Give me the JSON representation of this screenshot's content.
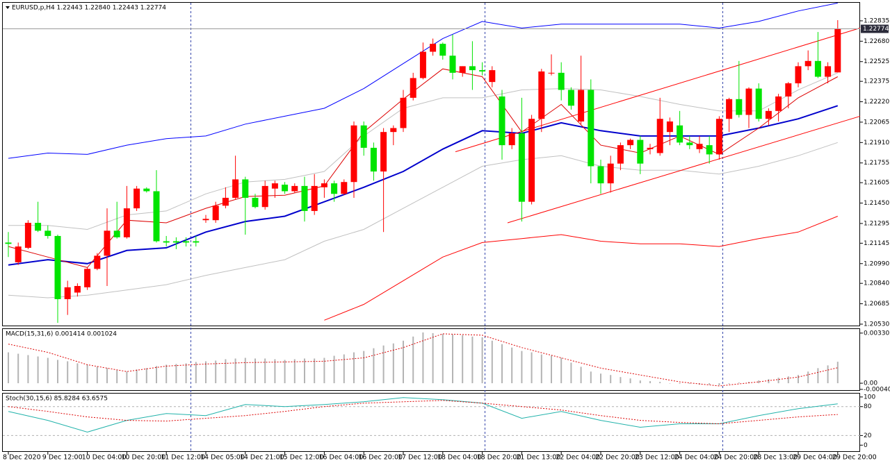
{
  "chart_data": [
    {
      "type": "candlestick",
      "title": "EURUSD,p,H4  1.22443 1.22840 1.22443 1.22774",
      "categories": [
        "8 Dec 2020",
        null,
        null,
        null,
        "9 Dec 12:00",
        null,
        null,
        null,
        "10 Dec 04:00",
        null,
        null,
        null,
        "10 Dec 20:00",
        null,
        null,
        null,
        "11 Dec 12:00",
        null,
        null,
        null,
        "14 Dec 05:00",
        null,
        null,
        null,
        "14 Dec 21:00",
        null,
        null,
        null,
        "15 Dec 12:00",
        null,
        null,
        null,
        "16 Dec 04:00",
        null,
        null,
        null,
        "16 Dec 20:00",
        null,
        null,
        null,
        "17 Dec 12:00",
        null,
        null,
        null,
        "18 Dec 04:00",
        null,
        null,
        null,
        "18 Dec 20:00",
        null,
        null,
        null,
        "21 Dec 13:00",
        null,
        null,
        null,
        "22 Dec 04:00",
        null,
        null,
        null,
        "22 Dec 20:00",
        null,
        null,
        null,
        "23 Dec 12:00",
        null,
        null,
        null,
        "24 Dec 04:00",
        null,
        null,
        null,
        "24 Dec 20:00",
        null,
        null,
        null,
        "28 Dec 13:00",
        null,
        null,
        null,
        "29 Dec 04:00",
        null,
        null,
        null,
        "29 Dec 20:00"
      ],
      "open": [
        1.2115,
        1.21,
        1.2111,
        1.213,
        1.2124,
        1.212,
        1.2072,
        1.2077,
        1.2081,
        1.2095,
        1.2105,
        1.2124,
        1.2119,
        1.2141,
        1.2156,
        1.2154,
        1.2116,
        1.2116,
        1.2116,
        1.2116,
        1.2132,
        1.2132,
        1.2143,
        1.2149,
        1.2163,
        1.2149,
        1.2142,
        1.2156,
        1.2159,
        1.2154,
        1.2158,
        1.2139,
        1.2157,
        1.216,
        1.2152,
        1.2161,
        1.2204,
        1.2187,
        1.2169,
        1.2199,
        1.2202,
        1.2225,
        1.224,
        1.226,
        1.2266,
        1.2257,
        1.2244,
        1.2249,
        1.2246,
        1.2237,
        1.2226,
        1.2189,
        1.2198,
        1.2146,
        1.2209,
        1.2244,
        1.2244,
        1.2231,
        1.2207,
        1.2231,
        1.2173,
        1.216,
        1.2175,
        1.2189,
        1.2193,
        1.2186,
        1.2183,
        1.2199,
        1.2204,
        1.2191,
        1.2186,
        1.2189,
        1.2182,
        1.2209,
        1.2224,
        1.2212,
        1.2232,
        1.2209,
        1.2215,
        1.2226,
        1.2236,
        1.2249,
        1.2253,
        1.2241,
        1.22443
      ],
      "high": [
        1.2123,
        1.2115,
        1.2132,
        1.2146,
        1.2128,
        1.2121,
        1.2086,
        1.2084,
        1.2096,
        1.2107,
        1.2141,
        1.2146,
        1.2158,
        1.2158,
        1.2157,
        1.217,
        1.212,
        1.2119,
        1.2119,
        1.212,
        1.2136,
        1.2146,
        1.2157,
        1.2181,
        1.2165,
        1.2152,
        1.2162,
        1.2162,
        1.2161,
        1.216,
        1.2165,
        1.2167,
        1.2163,
        1.2162,
        1.2163,
        1.2207,
        1.2207,
        1.2191,
        1.2202,
        1.2204,
        1.2231,
        1.2244,
        1.2267,
        1.227,
        1.2267,
        1.2273,
        1.2249,
        1.2268,
        1.2252,
        1.2249,
        1.2231,
        1.2202,
        1.2225,
        1.2212,
        1.2247,
        1.2258,
        1.2252,
        1.2233,
        1.2257,
        1.2239,
        1.2178,
        1.2181,
        1.2191,
        1.2194,
        1.2196,
        1.219,
        1.2225,
        1.221,
        1.2215,
        1.2196,
        1.2196,
        1.2196,
        1.2211,
        1.2225,
        1.2253,
        1.2233,
        1.2236,
        1.2217,
        1.2228,
        1.2237,
        1.2252,
        1.2261,
        1.2275,
        1.2252,
        1.2284
      ],
      "low": [
        1.2104,
        1.2098,
        1.211,
        1.2123,
        1.2118,
        1.2054,
        1.206,
        1.2074,
        1.2079,
        1.2094,
        1.2082,
        1.2118,
        1.2118,
        1.2139,
        1.2153,
        1.2115,
        1.2112,
        1.211,
        1.2112,
        1.2112,
        1.213,
        1.213,
        1.2141,
        1.2148,
        1.2121,
        1.2141,
        1.214,
        1.2149,
        1.2152,
        1.2153,
        1.2131,
        1.2136,
        1.2149,
        1.2146,
        1.2151,
        1.2149,
        1.2181,
        1.2162,
        1.2123,
        1.2189,
        1.2199,
        1.2223,
        1.2239,
        1.2257,
        1.2254,
        1.2239,
        1.2241,
        1.2231,
        1.2242,
        1.2233,
        1.2178,
        1.2186,
        1.2131,
        1.2144,
        1.2199,
        1.2242,
        1.2223,
        1.2216,
        1.2205,
        1.216,
        1.2152,
        1.2153,
        1.217,
        1.2186,
        1.2167,
        1.2182,
        1.2181,
        1.2189,
        1.2189,
        1.2186,
        1.2183,
        1.2175,
        1.2178,
        1.2199,
        1.221,
        1.2202,
        1.2207,
        1.2204,
        1.2207,
        1.2217,
        1.2233,
        1.2246,
        1.224,
        1.2236,
        1.22443
      ],
      "close": [
        1.2114,
        1.2112,
        1.213,
        1.2124,
        1.212,
        1.2072,
        1.2081,
        1.2082,
        1.2095,
        1.2105,
        1.2124,
        1.2119,
        1.2141,
        1.2156,
        1.2154,
        1.2116,
        1.2115,
        1.2115,
        1.2115,
        1.2115,
        1.2133,
        1.2143,
        1.2149,
        1.2163,
        1.2149,
        1.2142,
        1.2158,
        1.216,
        1.2154,
        1.2158,
        1.2139,
        1.2158,
        1.216,
        1.2152,
        1.2161,
        1.2204,
        1.2187,
        1.2169,
        1.2199,
        1.2202,
        1.2225,
        1.224,
        1.226,
        1.2266,
        1.2257,
        1.2244,
        1.2249,
        1.2246,
        1.2245,
        1.2246,
        1.2189,
        1.2198,
        1.2146,
        1.2209,
        1.2245,
        1.2244,
        1.2231,
        1.2219,
        1.2231,
        1.2173,
        1.216,
        1.2175,
        1.2189,
        1.2193,
        1.2175,
        1.2187,
        1.2209,
        1.2207,
        1.2191,
        1.2189,
        1.219,
        1.2182,
        1.2209,
        1.2224,
        1.2212,
        1.2232,
        1.2209,
        1.2215,
        1.2226,
        1.2236,
        1.2249,
        1.2253,
        1.2241,
        1.2249,
        1.22774
      ],
      "up_color": "#ff0000",
      "down_color": "#00e400",
      "ylim": [
        1.20514,
        1.22972
      ],
      "yticks": [
        1.22835,
        {
          "value": 1.2268,
          "label": "1.22680"
        },
        1.22525,
        1.22375,
        {
          "value": 1.2222,
          "label": "1.22220"
        },
        1.22065,
        {
          "value": 1.2191,
          "label": "1.21910"
        },
        1.21755,
        1.21605,
        {
          "value": 1.2145,
          "label": "1.21450"
        },
        1.21295,
        1.21145,
        {
          "value": 1.2099,
          "label": "1.20990"
        },
        {
          "value": 1.2084,
          "label": "1.20840"
        },
        1.20685,
        {
          "value": 1.2053,
          "label": "1.20530"
        }
      ],
      "lines": [
        {
          "color": "#c0c0c0",
          "values": [
            1.2128,
            1.2128,
            1.2125,
            1.2136,
            1.2139,
            1.2152,
            1.2161,
            1.2163,
            1.2169,
            1.2196,
            1.2217,
            1.2225,
            1.2225,
            1.2231,
            1.2232,
            1.2231,
            1.2226,
            1.222,
            1.2215,
            1.2215,
            1.2231,
            1.2244
          ]
        },
        {
          "color": "#c0c0c0",
          "values": [
            1.2075,
            1.2073,
            1.2075,
            1.2079,
            1.2083,
            1.209,
            1.2096,
            1.2102,
            1.2116,
            1.2125,
            1.2141,
            1.2157,
            1.2173,
            1.2178,
            1.2181,
            1.2173,
            1.217,
            1.217,
            1.2167,
            1.2173,
            1.2181,
            1.2191
          ]
        },
        {
          "color": "#0000ff",
          "values": [
            1.2179,
            1.2183,
            1.2182,
            1.2189,
            1.2194,
            1.2196,
            1.2205,
            1.2211,
            1.2217,
            1.2232,
            1.2251,
            1.227,
            1.2283,
            1.2278,
            1.2281,
            1.2281,
            1.2281,
            1.2281,
            1.2278,
            1.2283,
            1.2291,
            1.2297
          ]
        },
        {
          "color": "#ff0000",
          "values": [
            null,
            null,
            null,
            null,
            null,
            null,
            null,
            null,
            1.2056,
            1.2068,
            1.2086,
            1.2104,
            1.2115,
            1.2118,
            1.2121,
            1.2116,
            1.2114,
            1.2114,
            1.2112,
            1.2118,
            1.2123,
            1.2135
          ]
        },
        {
          "color": "#0000cc",
          "bold": true,
          "values": [
            1.2098,
            1.2102,
            1.2099,
            1.2109,
            1.2111,
            1.2123,
            1.2131,
            1.2135,
            1.2146,
            1.2157,
            1.2169,
            1.2186,
            1.22,
            1.2198,
            1.2206,
            1.22,
            1.2196,
            1.2196,
            1.2196,
            1.2202,
            1.2209,
            1.2219
          ]
        },
        {
          "color": "#dd0000",
          "values": [
            1.2112,
            1.2104,
            1.2096,
            1.2132,
            1.213,
            1.2141,
            1.215,
            1.2151,
            1.2158,
            1.2199,
            1.2224,
            1.2247,
            1.2241,
            1.2199,
            1.222,
            1.2189,
            1.2183,
            1.2196,
            1.2182,
            1.2202,
            1.2225,
            1.2241
          ]
        }
      ],
      "trend_lines": [
        {
          "color": "#ff0000",
          "values": [
            1.213,
            1.2211
          ]
        },
        {
          "color": "#ff0000",
          "values": [
            1.2184,
            1.2278
          ]
        }
      ]
    },
    {
      "type": "macd",
      "title": "MACD(15,31,6) 0.001414 0.001024",
      "color": "#b4b4b4",
      "values": [
        0.002034,
        0.001944,
        0.001853,
        0.001763,
        0.001672,
        0.001537,
        0.001446,
        0.001311,
        0.00122,
        0.001085,
        0.000994,
        0.000859,
        0.000768,
        0.000904,
        0.000994,
        0.00113,
        0.00122,
        0.001266,
        0.001311,
        0.001401,
        0.001446,
        0.001492,
        0.001582,
        0.001627,
        0.001672,
        0.001627,
        0.001627,
        0.001582,
        0.001537,
        0.001582,
        0.001627,
        0.001627,
        0.001672,
        0.001808,
        0.001898,
        0.002034,
        0.002124,
        0.002305,
        0.002486,
        0.002622,
        0.002802,
        0.003074,
        0.003345,
        0.0033,
        0.003254,
        0.003209,
        0.003164,
        0.003074,
        0.003028,
        0.002802,
        0.002576,
        0.00235,
        0.002124,
        0.002034,
        0.001898,
        0.001808,
        0.001672,
        0.001356,
        0.001085,
        0.000768,
        0.000633,
        0.000542,
        0.000407,
        0.000316,
        0.000181,
        0.000136,
        9e-05,
        0,
        -4.5e-05,
        -4.5e-05,
        -9e-05,
        -9e-05,
        -0.000136,
        -4.5e-05,
        4.5e-05,
        9e-05,
        0.000181,
        0.000271,
        0.000362,
        0.000452,
        0.000542,
        0.000768,
        0.000994,
        0.001175,
        0.001414
      ],
      "signal": {
        "color": "#dd0000",
        "values": [
          0.002576,
          0.002034,
          0.00122,
          0.000768,
          0.00113,
          0.001266,
          0.001356,
          0.001401,
          0.001446,
          0.001672,
          0.00235,
          0.003254,
          0.003164,
          0.00235,
          0.001672,
          0.000994,
          0.000542,
          9e-05,
          -0.000181,
          9e-05,
          0.000407,
          0.001024
        ]
      },
      "ylim": [
        -0.0005,
        0.00357
      ],
      "yticks": [
        0.003302,
        {
          "value": 0,
          "label": "0.00"
        },
        -0.000405
      ]
    },
    {
      "type": "stochastic",
      "title": "Stoch(30,15,6) 85.8284 63.6575",
      "main": {
        "color": "#20b2aa",
        "values": [
          70,
          51.4,
          27.1,
          51.4,
          65.7,
          61.4,
          84.3,
          80,
          84.3,
          90,
          98.6,
          94.3,
          87.1,
          55.7,
          70,
          51.4,
          37.1,
          44.3,
          44.3,
          61.4,
          75.7,
          85.8284
        ]
      },
      "signal": {
        "color": "#dd0000",
        "values": [
          80,
          70,
          58.6,
          51.4,
          50,
          55.7,
          61.4,
          70,
          80,
          87.1,
          90,
          92.9,
          87.1,
          80,
          72.9,
          61.4,
          51.4,
          47.1,
          44.3,
          51.4,
          58.6,
          63.6575
        ]
      },
      "levels": [
        20,
        80
      ],
      "ylim": [
        -14,
        107
      ],
      "yticks": [
        100,
        80,
        20,
        0
      ]
    }
  ]
}
